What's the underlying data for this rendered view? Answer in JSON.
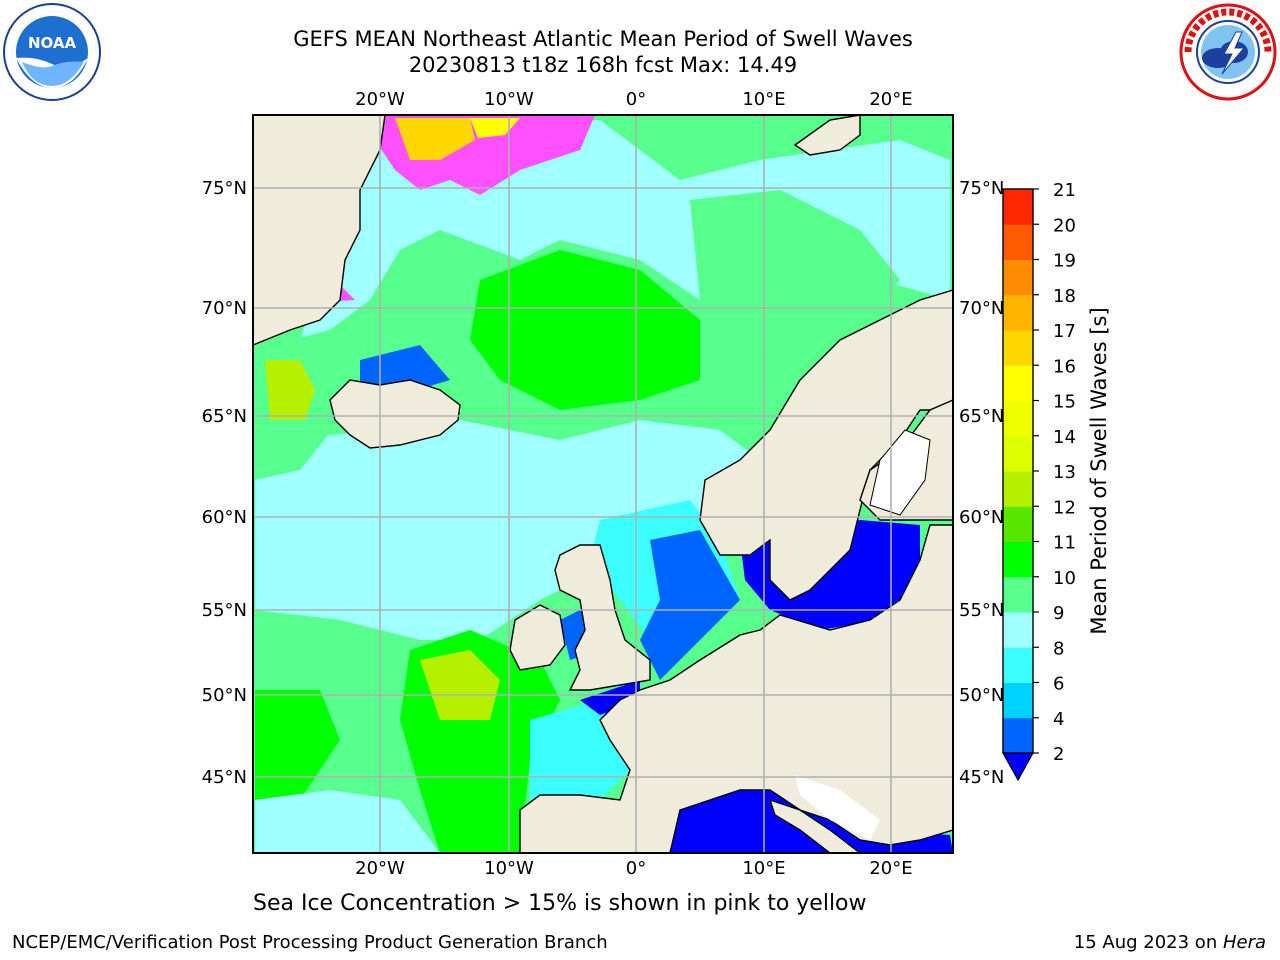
{
  "header": {
    "title_line1": "GEFS MEAN Northeast Atlantic Mean Period of Swell Waves",
    "title_line2": "20230813 t18z 168h fcst   Max: 14.49"
  },
  "logos": {
    "left": "noaa-logo",
    "left_text": "NOAA",
    "right": "nws-logo"
  },
  "map": {
    "lon_ticks": [
      "20°W",
      "10°W",
      "0°",
      "10°E",
      "20°E"
    ],
    "lon_values": [
      -20,
      -10,
      0,
      10,
      20
    ],
    "lat_ticks": [
      "75°N",
      "70°N",
      "65°N",
      "60°N",
      "55°N",
      "50°N",
      "45°N"
    ],
    "lat_values": [
      75,
      70,
      65,
      60,
      55,
      50,
      45
    ],
    "land_color": "#efecdc",
    "ocean_base_color": "#57ff8c"
  },
  "colorbar": {
    "label": "Mean Period of Swell Waves [s]",
    "tick_labels": [
      "2",
      "4",
      "6",
      "8",
      "9",
      "10",
      "11",
      "12",
      "13",
      "14",
      "15",
      "16",
      "17",
      "18",
      "19",
      "20",
      "21"
    ],
    "colors": [
      "#0064ff",
      "#00d2ff",
      "#3cffff",
      "#a0ffff",
      "#57ff8c",
      "#00ff00",
      "#57e600",
      "#b4f000",
      "#dcff00",
      "#f0ff00",
      "#ffff00",
      "#ffd700",
      "#ffb400",
      "#ff8c00",
      "#ff5a00",
      "#ff2800"
    ],
    "extend_color": "#0000ff"
  },
  "footer": {
    "ice_note": "Sea Ice Concentration > 15% is shown in pink to yellow",
    "left": "NCEP/EMC/Verification Post Processing Product Generation Branch",
    "right_date": "15 Aug 2023 on ",
    "right_host": "Hera"
  }
}
